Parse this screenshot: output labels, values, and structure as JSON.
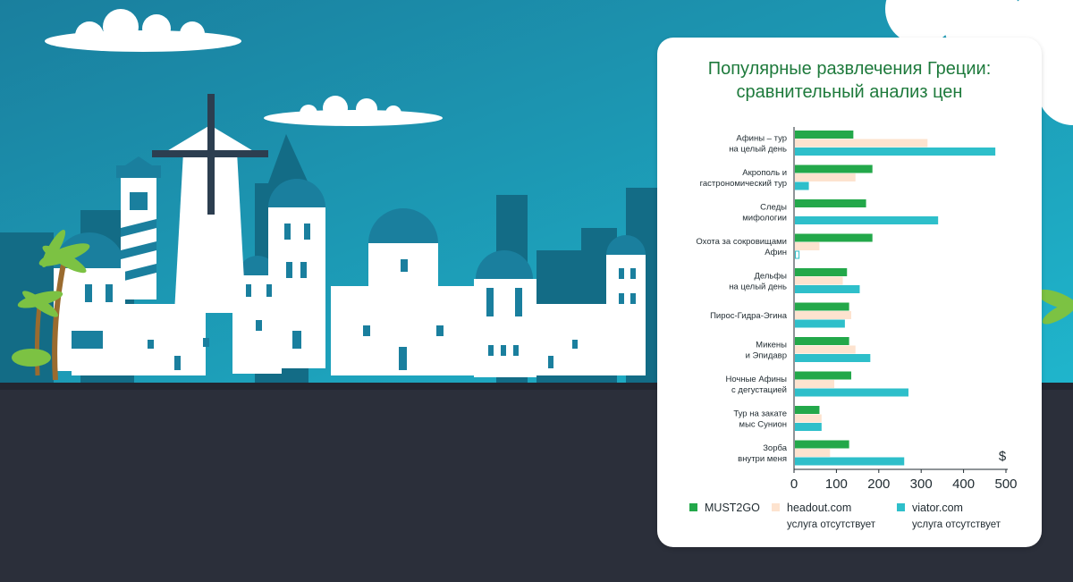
{
  "page": {
    "colors": {
      "sky_top": "#1a7f9e",
      "sky_bottom": "#1fb0c8",
      "ground": "#2b2f3a",
      "building_dark": "#136c86",
      "building_teal": "#1c8fa8",
      "white": "#ffffff",
      "window": "#1a7f9e",
      "palm_leaf": "#7cc243",
      "palm_trunk": "#9a6b2f"
    }
  },
  "chart_data": {
    "type": "bar",
    "orientation": "horizontal",
    "title": [
      "Популярные развлечения Греции:",
      "сравнительный анализ цен"
    ],
    "unit_label": "$",
    "categories": [
      [
        "Афины – тур",
        "на целый день"
      ],
      [
        "Акрополь и",
        "гастрономический тур"
      ],
      [
        "Следы",
        "мифологии"
      ],
      [
        "Охота за сокровищами",
        "Афин"
      ],
      [
        "Дельфы",
        "на целый день"
      ],
      [
        "Пирос-Гидра-Эгина"
      ],
      [
        "Микены",
        "и Эпидавр"
      ],
      [
        "Ночные Афины",
        "с дегустацией"
      ],
      [
        "Тур на закате",
        "мыс Сунион"
      ],
      [
        "Зорба",
        "внутри меня"
      ]
    ],
    "series": [
      {
        "name": "MUST2GO",
        "color": "#23a84a",
        "values": [
          140,
          185,
          170,
          185,
          125,
          130,
          130,
          135,
          60,
          130
        ]
      },
      {
        "name": "headout.com",
        "color": "#fde3cf",
        "values": [
          315,
          145,
          null,
          60,
          115,
          135,
          145,
          95,
          65,
          85
        ]
      },
      {
        "name": "viator.com",
        "color": "#2ebfca",
        "values": [
          475,
          35,
          340,
          null,
          155,
          120,
          180,
          270,
          65,
          260
        ]
      }
    ],
    "placeholder_values": {
      "viator.com": [
        null,
        null,
        null,
        15,
        null,
        null,
        null,
        null,
        null,
        null
      ]
    },
    "xlim": [
      0,
      500
    ],
    "xticks": [
      "0",
      "100",
      "200",
      "300",
      "400",
      "500"
    ],
    "legend": {
      "position": "bottom",
      "items": [
        {
          "label": "MUST2GO",
          "sub": ""
        },
        {
          "label": "headout.com",
          "sub": "услуга отсутствует"
        },
        {
          "label": "viator.com",
          "sub": "услуга отсутствует"
        }
      ]
    }
  }
}
